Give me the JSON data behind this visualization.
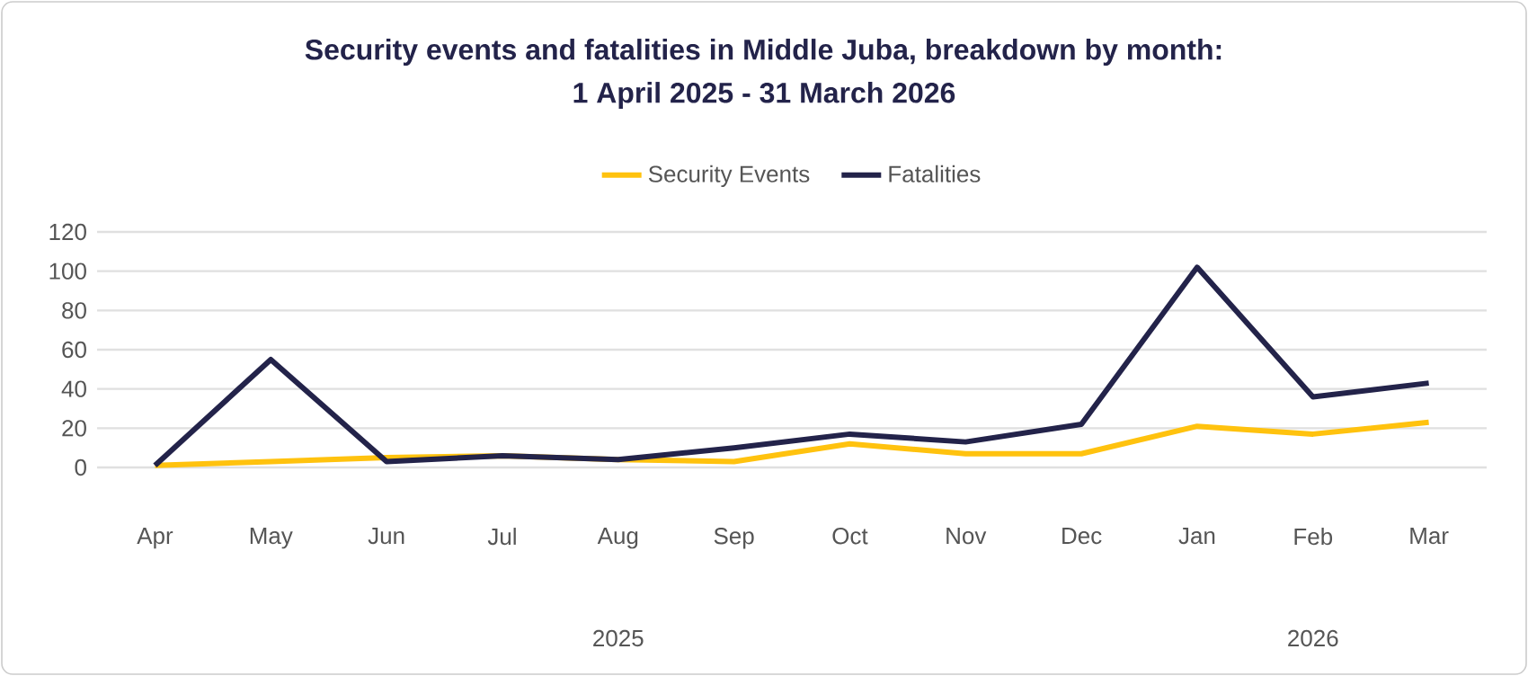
{
  "chart_data": {
    "type": "line",
    "title": "Security events and fatalities in Middle Juba, breakdown by month:",
    "subtitle": "1 April 2025 - 31 March 2026",
    "categories": [
      "Apr",
      "May",
      "Jun",
      "Jul",
      "Aug",
      "Sep",
      "Oct",
      "Nov",
      "Dec",
      "Jan",
      "Feb",
      "Mar"
    ],
    "series": [
      {
        "name": "Security Events",
        "color": "#ffc20e",
        "values": [
          1,
          3,
          5,
          6,
          4,
          3,
          12,
          7,
          7,
          21,
          17,
          23
        ]
      },
      {
        "name": "Fatalities",
        "color": "#23234a",
        "values": [
          1,
          55,
          3,
          6,
          4,
          10,
          17,
          13,
          22,
          102,
          36,
          43
        ]
      }
    ],
    "annotations": [
      "2025",
      "2026"
    ],
    "ylim": [
      0,
      120
    ],
    "yticks": [
      0,
      20,
      40,
      60,
      80,
      100,
      120
    ],
    "grid": "y",
    "legend": "top",
    "marker": "none",
    "line_style": "solid"
  }
}
